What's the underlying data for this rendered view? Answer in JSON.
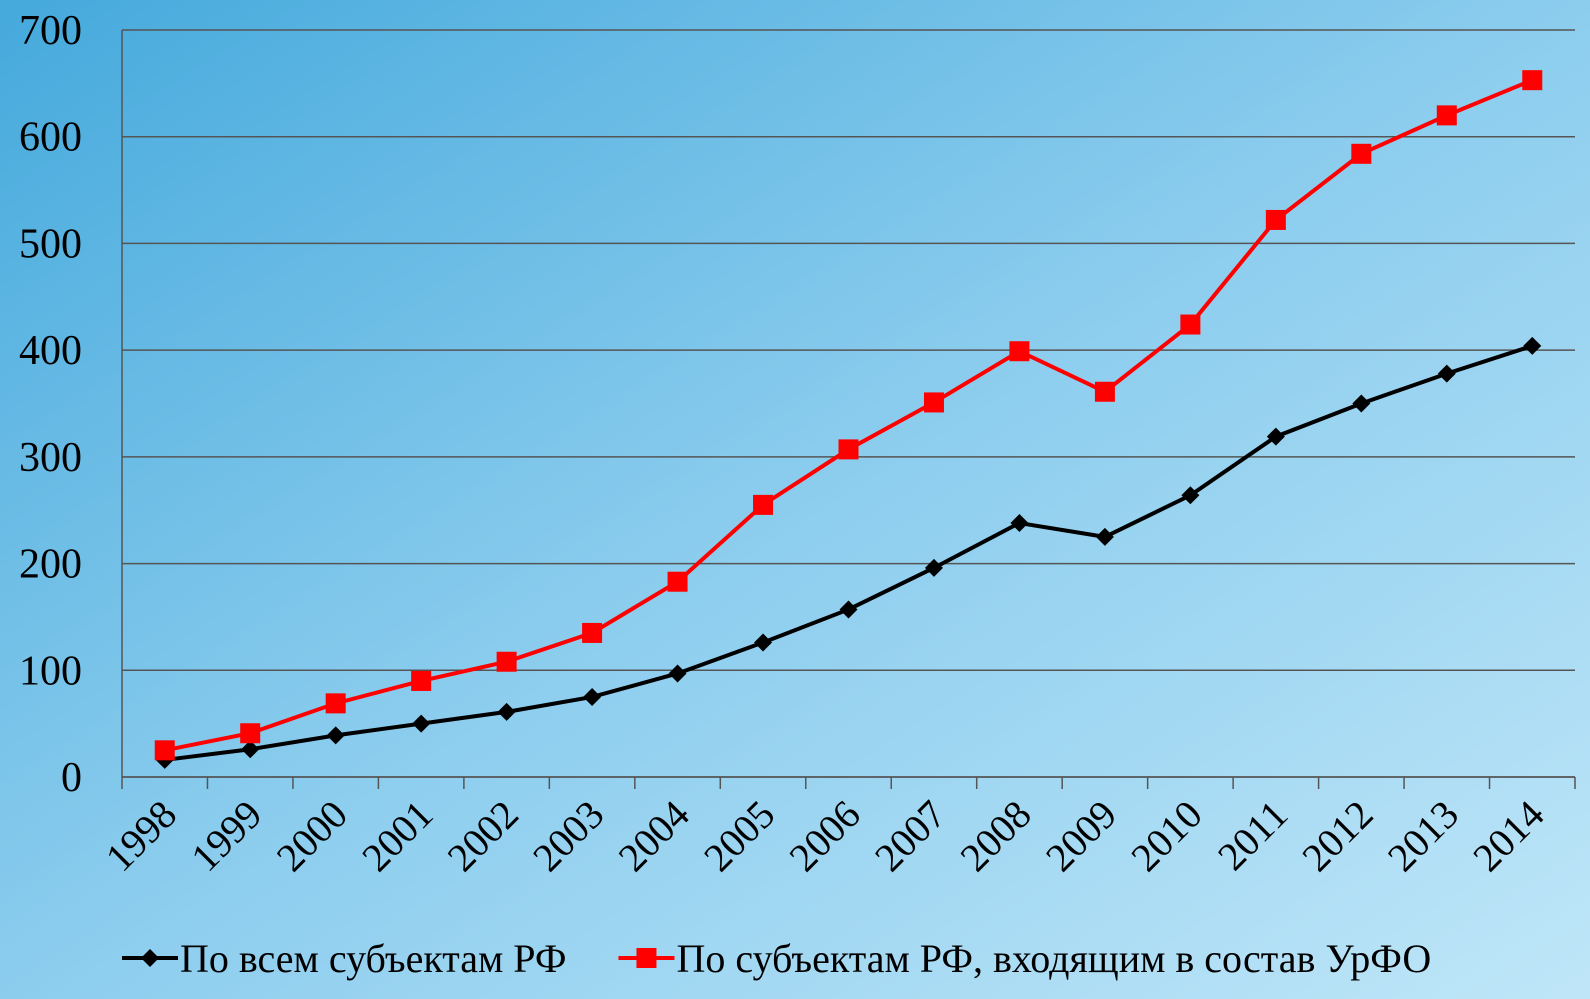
{
  "chart_data": {
    "type": "line",
    "categories": [
      "1998",
      "1999",
      "2000",
      "2001",
      "2002",
      "2003",
      "2004",
      "2005",
      "2006",
      "2007",
      "2008",
      "2009",
      "2010",
      "2011",
      "2012",
      "2013",
      "2014"
    ],
    "series": [
      {
        "name": "По всем субъектам РФ",
        "color": "#000000",
        "marker": "diamond",
        "values": [
          16,
          26,
          39,
          50,
          61,
          75,
          97,
          126,
          157,
          196,
          238,
          225,
          264,
          319,
          350,
          378,
          404
        ]
      },
      {
        "name": "По субъектам РФ, входящим в состав УрФО",
        "color": "#ff0000",
        "marker": "square",
        "values": [
          25,
          41,
          69,
          90,
          108,
          135,
          183,
          255,
          307,
          351,
          399,
          361,
          424,
          522,
          584,
          620,
          653
        ]
      }
    ],
    "ylim": [
      0,
      700
    ],
    "yticks": [
      0,
      100,
      200,
      300,
      400,
      500,
      600,
      700
    ],
    "grid": true,
    "legend": "bottom"
  }
}
